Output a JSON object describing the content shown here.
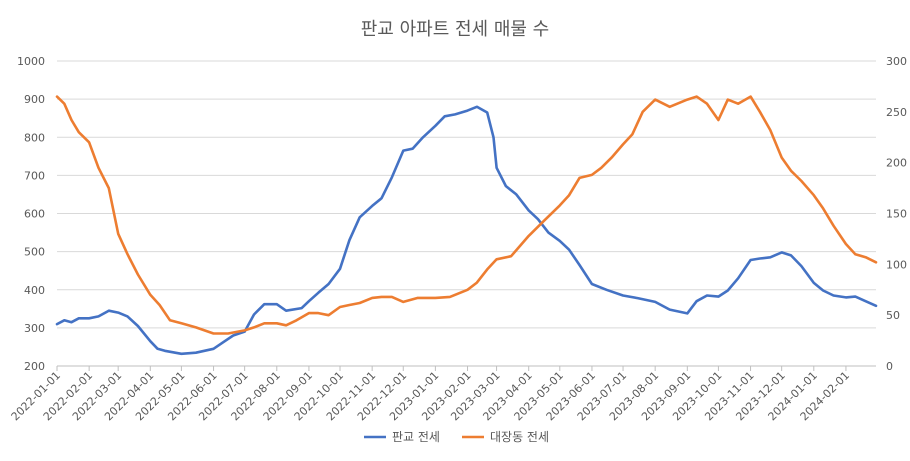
{
  "chart_data": {
    "type": "line",
    "title": "판교 아파트 전세 매물 수",
    "xlabel": "",
    "ylabel": "",
    "x_axis_type": "date",
    "x_range": [
      "2022-01-01",
      "2024-03-01"
    ],
    "x_tick_labels": [
      "2022-01-01",
      "2022-02-01",
      "2022-03-01",
      "2022-04-01",
      "2022-05-01",
      "2022-06-01",
      "2022-07-01",
      "2022-08-01",
      "2022-09-01",
      "2022-10-01",
      "2022-11-01",
      "2022-12-01",
      "2023-01-01",
      "2023-02-01",
      "2023-03-01",
      "2023-04-01",
      "2023-05-01",
      "2023-06-01",
      "2023-07-01",
      "2023-08-01",
      "2023-09-01",
      "2023-10-01",
      "2023-11-01",
      "2023-12-01",
      "2024-01-01",
      "2024-02-01"
    ],
    "y_left": {
      "ylim": [
        200,
        1000
      ],
      "ticks": [
        "200",
        "300",
        "400",
        "500",
        "600",
        "700",
        "800",
        "900",
        "1000"
      ]
    },
    "y_right": {
      "ylim": [
        0,
        300
      ],
      "ticks": [
        "0",
        "50",
        "100",
        "150",
        "200",
        "250",
        "300"
      ]
    },
    "grid": true,
    "legend_position": "bottom",
    "series": [
      {
        "name": "판교 전세",
        "axis": "left",
        "color": "#4472C4",
        "points": [
          [
            "2022-01-01",
            310
          ],
          [
            "2022-01-08",
            320
          ],
          [
            "2022-01-15",
            315
          ],
          [
            "2022-01-22",
            325
          ],
          [
            "2022-02-01",
            325
          ],
          [
            "2022-02-10",
            330
          ],
          [
            "2022-02-20",
            345
          ],
          [
            "2022-03-01",
            340
          ],
          [
            "2022-03-10",
            330
          ],
          [
            "2022-03-20",
            305
          ],
          [
            "2022-04-01",
            265
          ],
          [
            "2022-04-08",
            245
          ],
          [
            "2022-04-15",
            240
          ],
          [
            "2022-05-01",
            232
          ],
          [
            "2022-05-15",
            235
          ],
          [
            "2022-06-01",
            245
          ],
          [
            "2022-06-10",
            262
          ],
          [
            "2022-06-20",
            280
          ],
          [
            "2022-07-01",
            290
          ],
          [
            "2022-07-10",
            335
          ],
          [
            "2022-07-20",
            362
          ],
          [
            "2022-08-01",
            362
          ],
          [
            "2022-08-10",
            345
          ],
          [
            "2022-08-25",
            352
          ],
          [
            "2022-09-01",
            370
          ],
          [
            "2022-09-10",
            392
          ],
          [
            "2022-09-20",
            415
          ],
          [
            "2022-10-01",
            455
          ],
          [
            "2022-10-10",
            530
          ],
          [
            "2022-10-20",
            590
          ],
          [
            "2022-11-01",
            620
          ],
          [
            "2022-11-10",
            640
          ],
          [
            "2022-11-20",
            695
          ],
          [
            "2022-12-01",
            765
          ],
          [
            "2022-12-10",
            770
          ],
          [
            "2022-12-20",
            800
          ],
          [
            "2023-01-01",
            830
          ],
          [
            "2023-01-10",
            855
          ],
          [
            "2023-01-20",
            860
          ],
          [
            "2023-02-01",
            870
          ],
          [
            "2023-02-10",
            880
          ],
          [
            "2023-02-20",
            865
          ],
          [
            "2023-02-26",
            800
          ],
          [
            "2023-03-01",
            720
          ],
          [
            "2023-03-10",
            672
          ],
          [
            "2023-03-20",
            650
          ],
          [
            "2023-04-01",
            608
          ],
          [
            "2023-04-10",
            585
          ],
          [
            "2023-04-20",
            550
          ],
          [
            "2023-05-01",
            528
          ],
          [
            "2023-05-10",
            505
          ],
          [
            "2023-05-20",
            465
          ],
          [
            "2023-06-01",
            415
          ],
          [
            "2023-06-15",
            400
          ],
          [
            "2023-07-01",
            385
          ],
          [
            "2023-07-15",
            378
          ],
          [
            "2023-08-01",
            368
          ],
          [
            "2023-08-15",
            348
          ],
          [
            "2023-09-01",
            338
          ],
          [
            "2023-09-10",
            370
          ],
          [
            "2023-09-20",
            385
          ],
          [
            "2023-10-01",
            382
          ],
          [
            "2023-10-10",
            398
          ],
          [
            "2023-10-20",
            430
          ],
          [
            "2023-11-01",
            478
          ],
          [
            "2023-11-10",
            482
          ],
          [
            "2023-11-20",
            485
          ],
          [
            "2023-12-01",
            498
          ],
          [
            "2023-12-10",
            490
          ],
          [
            "2023-12-20",
            462
          ],
          [
            "2024-01-01",
            418
          ],
          [
            "2024-01-10",
            398
          ],
          [
            "2024-01-20",
            385
          ],
          [
            "2024-02-01",
            380
          ],
          [
            "2024-02-10",
            382
          ],
          [
            "2024-02-20",
            370
          ],
          [
            "2024-03-01",
            358
          ]
        ]
      },
      {
        "name": "대장동 전세",
        "axis": "right",
        "color": "#ED7D31",
        "points": [
          [
            "2022-01-01",
            265
          ],
          [
            "2022-01-08",
            258
          ],
          [
            "2022-01-15",
            242
          ],
          [
            "2022-01-22",
            230
          ],
          [
            "2022-02-01",
            220
          ],
          [
            "2022-02-10",
            195
          ],
          [
            "2022-02-20",
            175
          ],
          [
            "2022-03-01",
            130
          ],
          [
            "2022-03-10",
            110
          ],
          [
            "2022-03-20",
            90
          ],
          [
            "2022-04-01",
            70
          ],
          [
            "2022-04-10",
            60
          ],
          [
            "2022-04-20",
            45
          ],
          [
            "2022-05-01",
            42
          ],
          [
            "2022-05-15",
            38
          ],
          [
            "2022-06-01",
            32
          ],
          [
            "2022-06-15",
            32
          ],
          [
            "2022-07-01",
            35
          ],
          [
            "2022-07-10",
            38
          ],
          [
            "2022-07-20",
            42
          ],
          [
            "2022-08-01",
            42
          ],
          [
            "2022-08-10",
            40
          ],
          [
            "2022-08-20",
            45
          ],
          [
            "2022-09-01",
            52
          ],
          [
            "2022-09-10",
            52
          ],
          [
            "2022-09-20",
            50
          ],
          [
            "2022-10-01",
            58
          ],
          [
            "2022-10-10",
            60
          ],
          [
            "2022-10-20",
            62
          ],
          [
            "2022-11-01",
            67
          ],
          [
            "2022-11-10",
            68
          ],
          [
            "2022-11-20",
            68
          ],
          [
            "2022-12-01",
            63
          ],
          [
            "2022-12-15",
            67
          ],
          [
            "2023-01-01",
            67
          ],
          [
            "2023-01-15",
            68
          ],
          [
            "2023-02-01",
            75
          ],
          [
            "2023-02-10",
            82
          ],
          [
            "2023-02-20",
            95
          ],
          [
            "2023-03-01",
            105
          ],
          [
            "2023-03-15",
            108
          ],
          [
            "2023-04-01",
            128
          ],
          [
            "2023-04-15",
            142
          ],
          [
            "2023-05-01",
            158
          ],
          [
            "2023-05-10",
            168
          ],
          [
            "2023-05-20",
            185
          ],
          [
            "2023-06-01",
            188
          ],
          [
            "2023-06-10",
            195
          ],
          [
            "2023-06-20",
            205
          ],
          [
            "2023-07-01",
            218
          ],
          [
            "2023-07-10",
            228
          ],
          [
            "2023-07-20",
            250
          ],
          [
            "2023-08-01",
            262
          ],
          [
            "2023-08-15",
            255
          ],
          [
            "2023-09-01",
            262
          ],
          [
            "2023-09-10",
            265
          ],
          [
            "2023-09-20",
            258
          ],
          [
            "2023-10-01",
            242
          ],
          [
            "2023-10-10",
            262
          ],
          [
            "2023-10-20",
            258
          ],
          [
            "2023-11-01",
            265
          ],
          [
            "2023-11-10",
            250
          ],
          [
            "2023-11-20",
            232
          ],
          [
            "2023-12-01",
            205
          ],
          [
            "2023-12-10",
            192
          ],
          [
            "2023-12-20",
            182
          ],
          [
            "2024-01-01",
            168
          ],
          [
            "2024-01-10",
            155
          ],
          [
            "2024-01-20",
            138
          ],
          [
            "2024-02-01",
            120
          ],
          [
            "2024-02-10",
            110
          ],
          [
            "2024-02-20",
            107
          ],
          [
            "2024-03-01",
            102
          ]
        ]
      }
    ]
  }
}
